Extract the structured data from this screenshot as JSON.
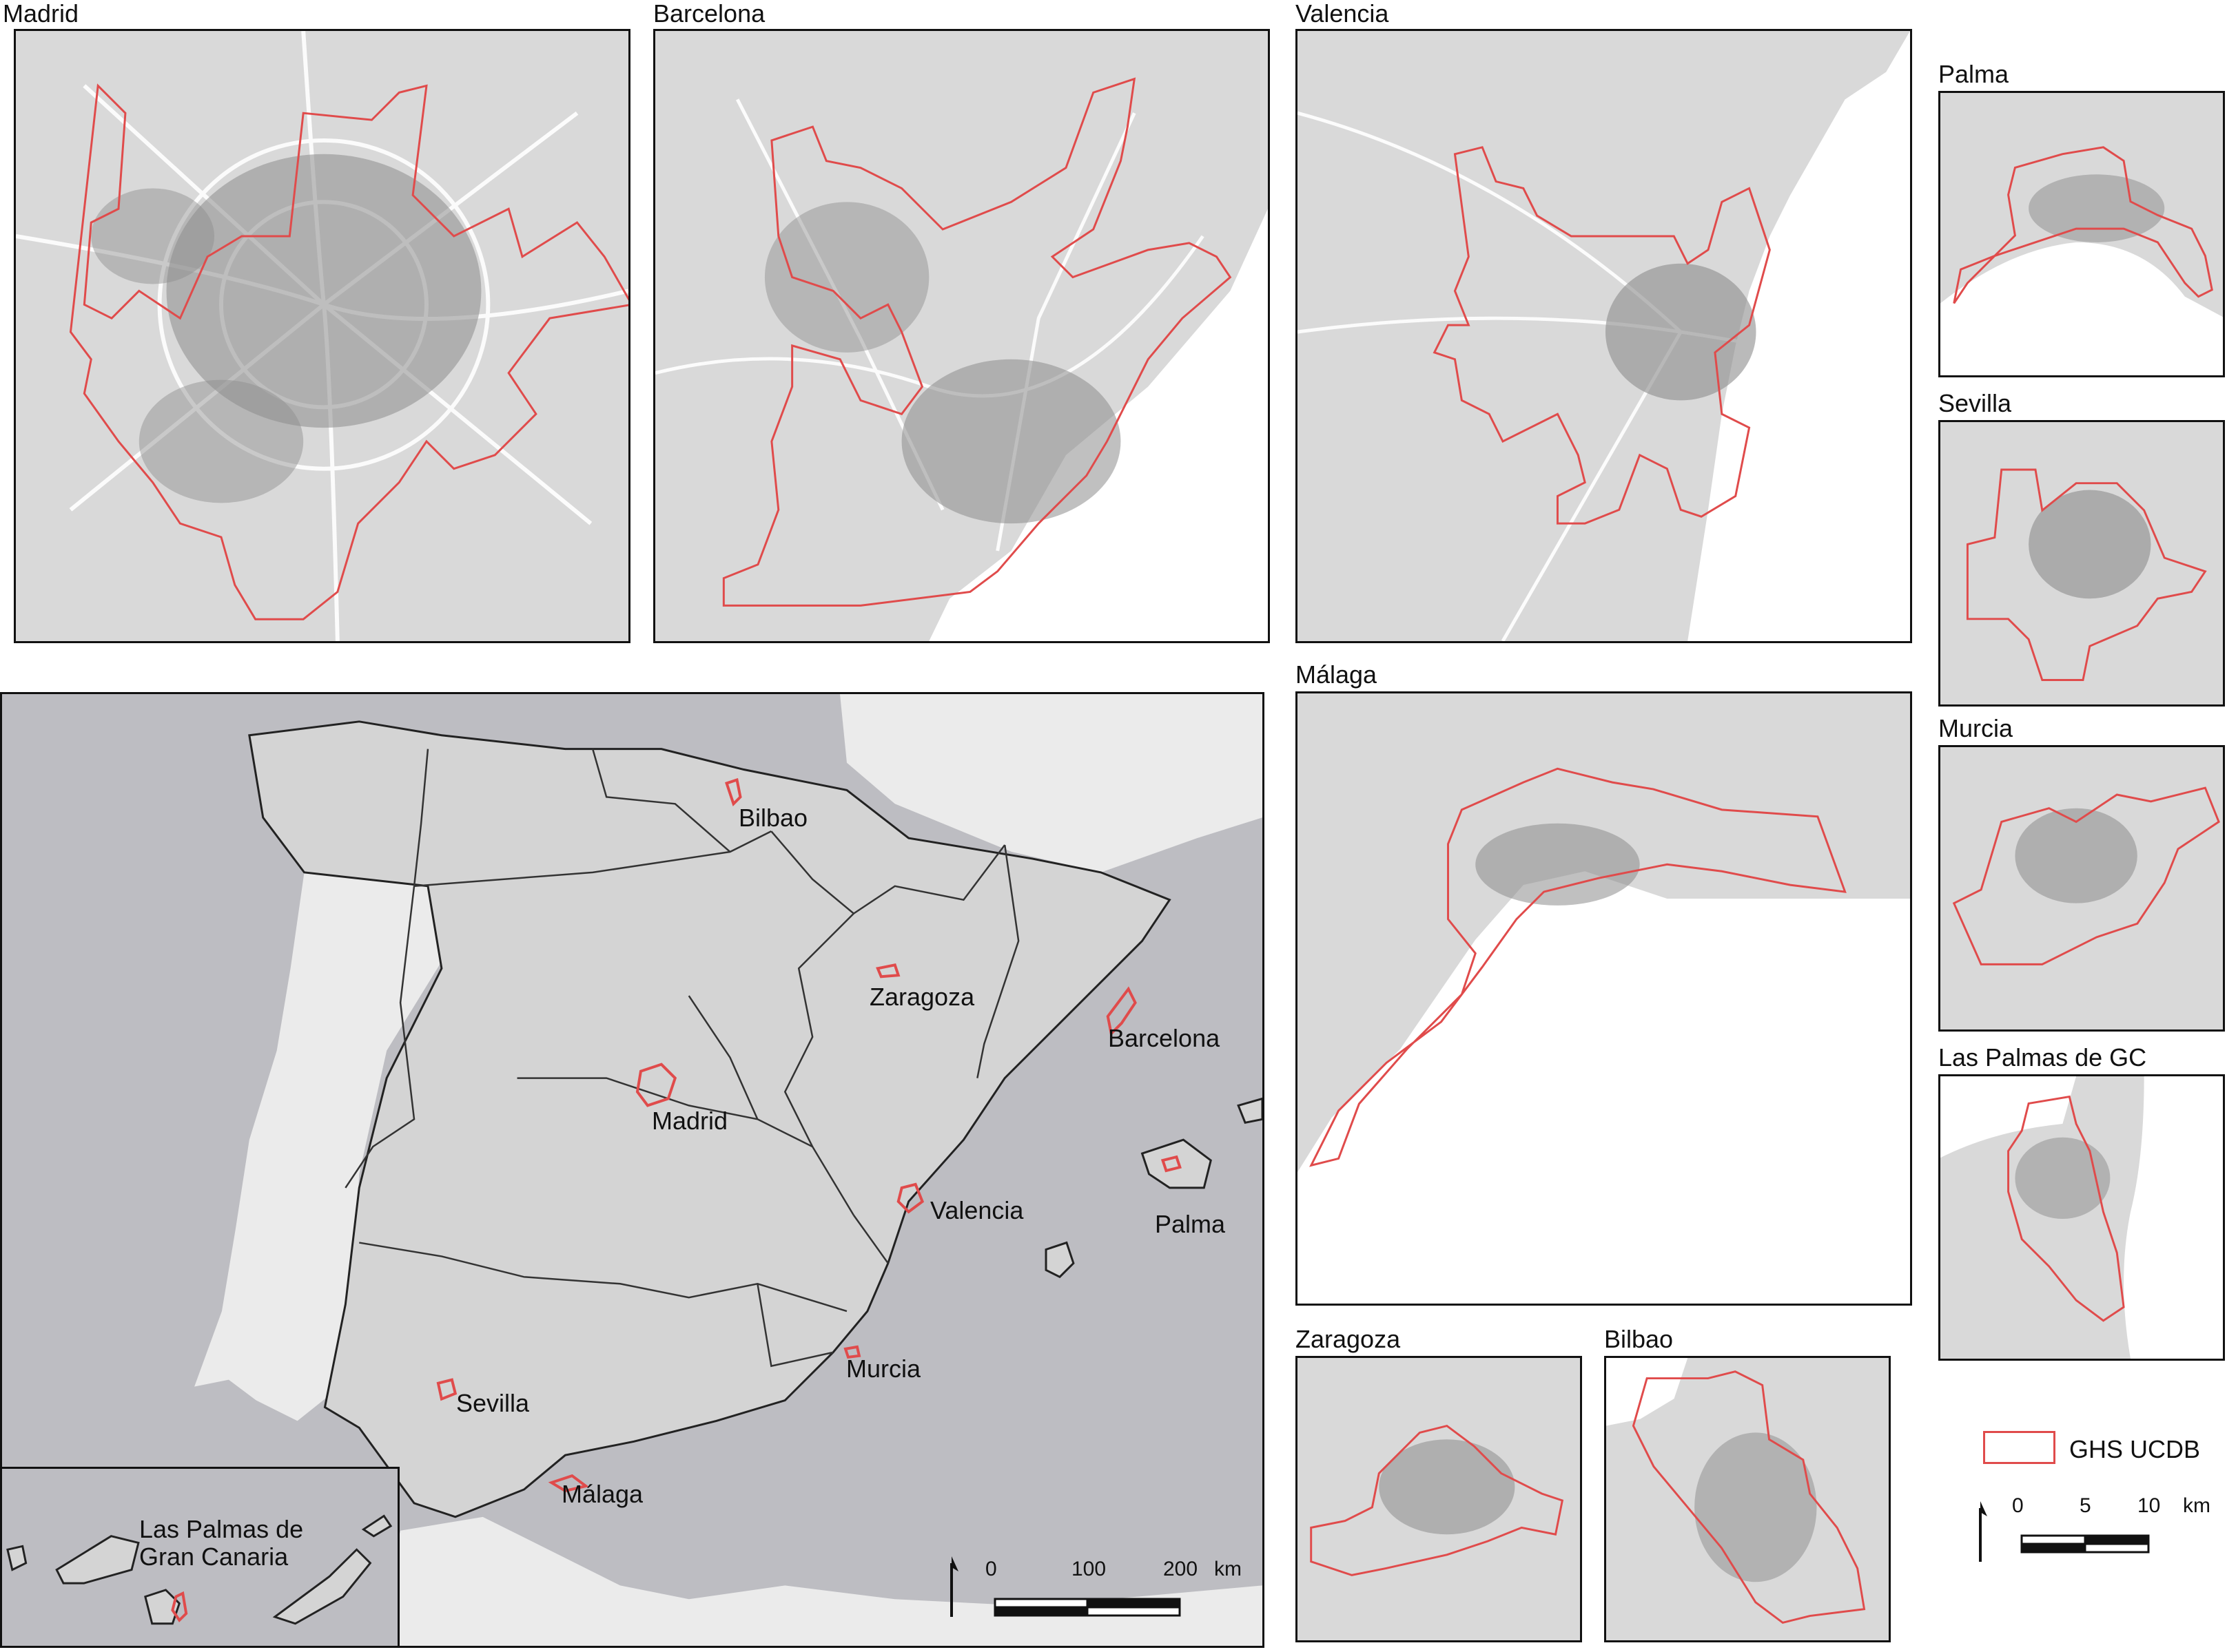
{
  "panels": {
    "madrid": {
      "title": "Madrid"
    },
    "barcelona": {
      "title": "Barcelona"
    },
    "valencia": {
      "title": "Valencia"
    },
    "palma": {
      "title": "Palma"
    },
    "sevilla": {
      "title": "Sevilla"
    },
    "malaga": {
      "title": "Málaga"
    },
    "murcia": {
      "title": "Murcia"
    },
    "laspalmas": {
      "title": "Las Palmas de GC"
    },
    "zaragoza": {
      "title": "Zaragoza"
    },
    "bilbao": {
      "title": "Bilbao"
    }
  },
  "overview": {
    "city_labels": [
      "Bilbao",
      "Zaragoza",
      "Barcelona",
      "Madrid",
      "Valencia",
      "Palma",
      "Sevilla",
      "Murcia",
      "Málaga"
    ],
    "canary_label_line1": "Las Palmas de",
    "canary_label_line2": "Gran Canaria",
    "scale_0": "0",
    "scale_100": "100",
    "scale_200": "200",
    "scale_unit": "km"
  },
  "legend": {
    "label": "GHS UCDB",
    "scale_0": "0",
    "scale_5": "5",
    "scale_10": "10",
    "scale_unit": "km"
  },
  "colors": {
    "boundary": "#e04b4b",
    "land_dark": "#c8c8cc",
    "land_mid": "#d4d4d4",
    "land_light": "#ebebeb",
    "sea": "#bdbdc2",
    "roads": "#ffffff",
    "urban": "#8c8c8c"
  }
}
